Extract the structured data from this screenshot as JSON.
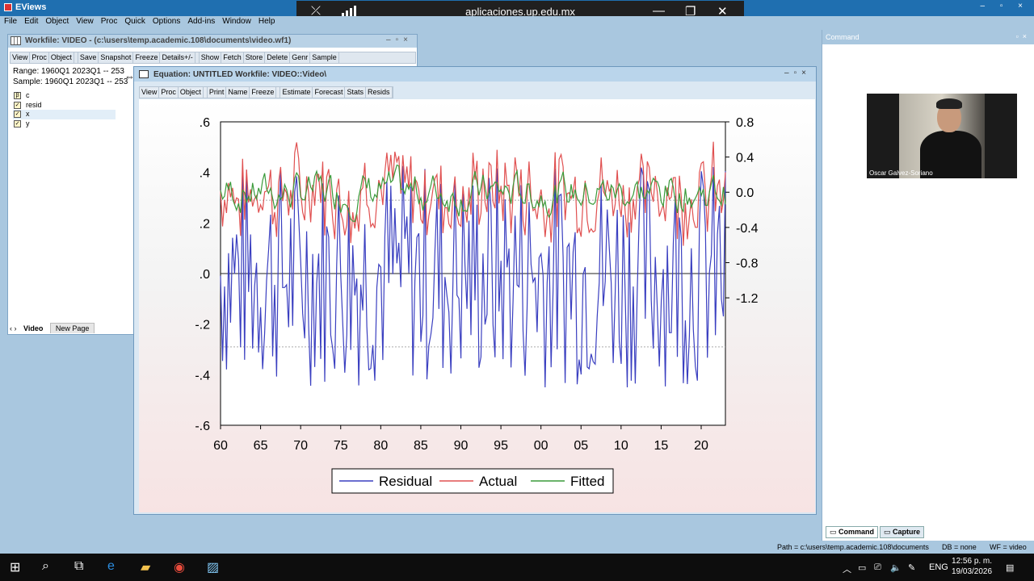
{
  "app": {
    "title": "EViews",
    "controls": "– ▫ ×"
  },
  "remote": {
    "host": "aplicaciones.up.edu.mx"
  },
  "menu": [
    "File",
    "Edit",
    "Object",
    "View",
    "Proc",
    "Quick",
    "Options",
    "Add-ins",
    "Window",
    "Help"
  ],
  "workfile": {
    "title": "Workfile: VIDEO - (c:\\users\\temp.academic.108\\documents\\video.wf1)",
    "toolbar": [
      "View",
      "Proc",
      "Object",
      "Save",
      "Snapshot",
      "Freeze",
      "Details+/-",
      "Show",
      "Fetch",
      "Store",
      "Delete",
      "Genr",
      "Sample"
    ],
    "range": "Range:  1960Q1 2023Q1   --   253",
    "sample": "Sample: 1960Q1 2023Q1   --   253",
    "objects": [
      {
        "icon": "coef-icon",
        "name": "c"
      },
      {
        "icon": "series-icon",
        "name": "resid"
      },
      {
        "icon": "series-icon",
        "name": "x"
      },
      {
        "icon": "series-icon",
        "name": "y"
      }
    ],
    "tabs": [
      "Video",
      "New Page"
    ]
  },
  "equation": {
    "title": "Equation: UNTITLED   Workfile: VIDEO::Video\\",
    "toolbar": [
      "View",
      "Proc",
      "Object",
      "Print",
      "Name",
      "Freeze",
      "Estimate",
      "Forecast",
      "Stats",
      "Resids"
    ]
  },
  "chart_data": {
    "type": "line",
    "x_ticks": [
      "60",
      "65",
      "70",
      "75",
      "80",
      "85",
      "90",
      "95",
      "00",
      "05",
      "10",
      "15",
      "20"
    ],
    "left_axis": {
      "ticks": [
        ".6",
        ".4",
        ".2",
        ".0",
        "-.2",
        "-.4",
        "-.6"
      ],
      "range": [
        -0.6,
        0.6
      ]
    },
    "right_axis": {
      "ticks": [
        "0.8",
        "0.4",
        "0.0",
        "-0.4",
        "-0.8",
        "-1.2"
      ],
      "range": [
        -1.2,
        0.8
      ]
    },
    "legend": [
      "Residual",
      "Actual",
      "Fitted"
    ],
    "colors": {
      "residual": "#3a3fc0",
      "actual": "#e05050",
      "fitted": "#3a9a3a"
    },
    "sigma_band": [
      0.29,
      -0.29
    ]
  },
  "command": {
    "title": "Command",
    "participant": "Oscar Galvez-Soriano",
    "tabs": [
      "Command",
      "Capture"
    ]
  },
  "status": {
    "path": "Path = c:\\users\\temp.academic.108\\documents",
    "db": "DB = none",
    "wf": "WF = video"
  },
  "taskbar": {
    "lang": "ENG",
    "time": "12:56 p. m.",
    "date": "19/03/2026"
  }
}
